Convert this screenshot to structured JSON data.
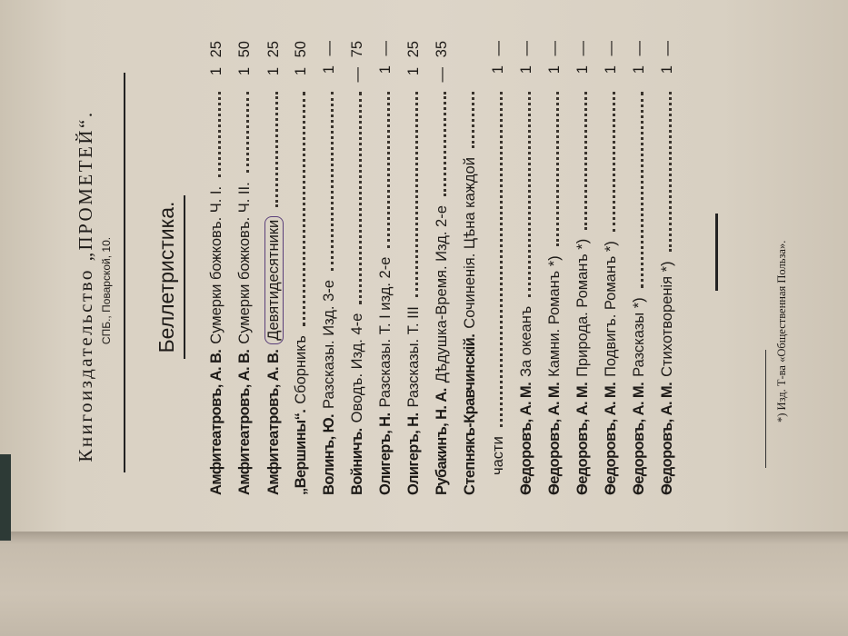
{
  "header": {
    "publisher": "Книгоиздательство „ПРОМЕТЕЙ“.",
    "address": "СПБ., Поварской, 10."
  },
  "section_title": "Беллетристика.",
  "entries": [
    {
      "author": "Амфитеатровъ, А. В.",
      "title": "Сумерки божковъ. Ч. I.",
      "price": "1 25"
    },
    {
      "author": "Амфитеатровъ, А. В.",
      "title": "Сумерки божковъ. Ч. II.",
      "price": "1 50"
    },
    {
      "author": "Амфитеатровъ, А. В.",
      "title": "Девятидесятники",
      "price": "1 25",
      "annotated": true
    },
    {
      "author": "„Вершины“.",
      "title": "Сборникъ",
      "price": "1 50"
    },
    {
      "author": "Волинъ, Ю.",
      "title": "Разсказы. Изд. 3-е",
      "price": "1 —"
    },
    {
      "author": "Войничъ.",
      "title": "Оводъ. Изд. 4-е",
      "price": "— 75"
    },
    {
      "author": "Олигеръ, Н.",
      "title": "Разсказы. Т. I изд. 2-е",
      "price": "1 —"
    },
    {
      "author": "Олигеръ, Н.",
      "title": "Разсказы. Т. III",
      "price": "1 25"
    },
    {
      "author": "Рубакинъ, Н. А.",
      "title": "Дѣдушка-Время. Изд. 2-е",
      "price": "— 35"
    },
    {
      "author": "Степнякъ-Кравчинскій.",
      "title": "Сочиненія. Цѣна каждой",
      "price": ""
    },
    {
      "author": "",
      "title": "части",
      "price": "1 —",
      "continuation": true
    },
    {
      "author": "Ѳедоровъ, А. М.",
      "title": "За океанъ",
      "price": "1 —"
    },
    {
      "author": "Ѳедоровъ, А. М.",
      "title": "Камни. Романъ *)",
      "price": "1 —"
    },
    {
      "author": "Ѳедоровъ, А. М.",
      "title": "Природа. Романъ *)",
      "price": "1 —"
    },
    {
      "author": "Ѳедоровъ, А. М.",
      "title": "Подвигъ. Романъ *)",
      "price": "1 —"
    },
    {
      "author": "Ѳедоровъ, А. М.",
      "title": "Разсказы *)",
      "price": "1 —"
    },
    {
      "author": "Ѳедоровъ, А. М.",
      "title": "Стихотворенія *)",
      "price": "1 —"
    }
  ],
  "footnote": "*) Изд. Т-ва «Общественная Польза».",
  "colors": {
    "paper": "#ddd5c8",
    "ink": "#1e1b18",
    "pen_annotation": "#5a3f7a"
  }
}
